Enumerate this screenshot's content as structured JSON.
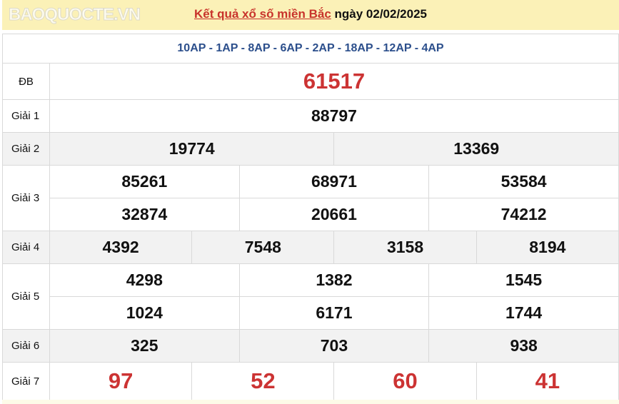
{
  "header": {
    "title_link": "Kết quả xổ số miền Bắc",
    "title_rest": " ngày 02/02/2025"
  },
  "codes": "10AP - 1AP - 8AP - 6AP - 2AP - 18AP - 12AP - 4AP",
  "prizes": {
    "db": {
      "label": "ĐB",
      "values": [
        "61517"
      ]
    },
    "g1": {
      "label": "Giải 1",
      "values": [
        "88797"
      ]
    },
    "g2": {
      "label": "Giải 2",
      "values": [
        "19774",
        "13369"
      ]
    },
    "g3": {
      "label": "Giải 3",
      "values": [
        "85261",
        "68971",
        "53584",
        "32874",
        "20661",
        "74212"
      ]
    },
    "g4": {
      "label": "Giải 4",
      "values": [
        "4392",
        "7548",
        "3158",
        "8194"
      ]
    },
    "g5": {
      "label": "Giải 5",
      "values": [
        "4298",
        "1382",
        "1545",
        "1024",
        "6171",
        "1744"
      ]
    },
    "g6": {
      "label": "Giải 6",
      "values": [
        "325",
        "703",
        "938"
      ]
    },
    "g7": {
      "label": "Giải 7",
      "values": [
        "97",
        "52",
        "60",
        "41"
      ]
    }
  },
  "watermark": "BAOQUOCTE.VN",
  "colors": {
    "highlight": "#cc3333",
    "codes": "#2c4f8c",
    "header_bg": "#fbf1b7"
  }
}
